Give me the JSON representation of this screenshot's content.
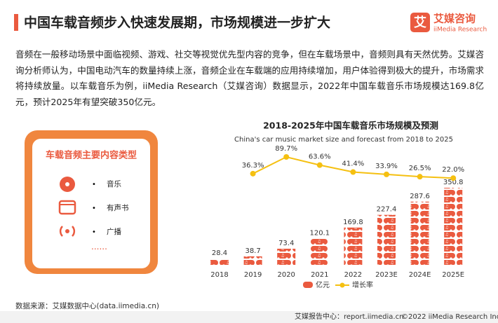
{
  "header": {
    "title": "中国车载音频步入快速发展期，市场规模进一步扩大",
    "logo_name": "艾媒咨询",
    "logo_en": "iiMedia Research",
    "logo_char": "艾"
  },
  "paragraph": "音频在一般移动场景中面临视频、游戏、社交等视觉优先型内容的竞争，但在车载场景中，音频则具有天然优势。艾媒咨询分析师认为，中国电动汽车的数量持续上涨，音频企业在车载端的应用持续增加，用户体验得到极大的提升，市场需求将持续放量。以车载音乐为例，iiMedia Research（艾媒咨询）数据显示，2022年中国车载音乐市场规模达169.8亿元，预计2025年有望突破350亿元。",
  "panel": {
    "title": "车载音频主要内容类型",
    "items": [
      "音乐",
      "有声书",
      "广播"
    ]
  },
  "chart_data": {
    "type": "bar_line",
    "title": "2018-2025年中国车载音乐市场规模及预测",
    "subtitle": "China's car music market size and forecast from 2018 to 2025",
    "categories": [
      "2018",
      "2019",
      "2020",
      "2021",
      "2022",
      "2023E",
      "2024E",
      "2025E"
    ],
    "series": [
      {
        "name": "亿元",
        "color": "#ea5a3f",
        "values": [
          28.4,
          38.7,
          73.4,
          120.1,
          169.8,
          227.4,
          287.6,
          350.8
        ]
      },
      {
        "name": "增长率",
        "color": "#f5c011",
        "values": [
          null,
          36.3,
          89.7,
          63.6,
          41.4,
          33.9,
          26.5,
          22.0
        ],
        "value_labels": [
          null,
          "36.3%",
          "89.7%",
          "63.6%",
          "41.4%",
          "33.9%",
          "26.5%",
          "22.0%"
        ]
      }
    ]
  },
  "footer": {
    "source": "数据来源：艾媒数据中心(data.iimedia.cn)",
    "site": "艾媒报告中心：report.iimedia.cn",
    "copyright": "©2022  iiMedia Research  Inc"
  }
}
